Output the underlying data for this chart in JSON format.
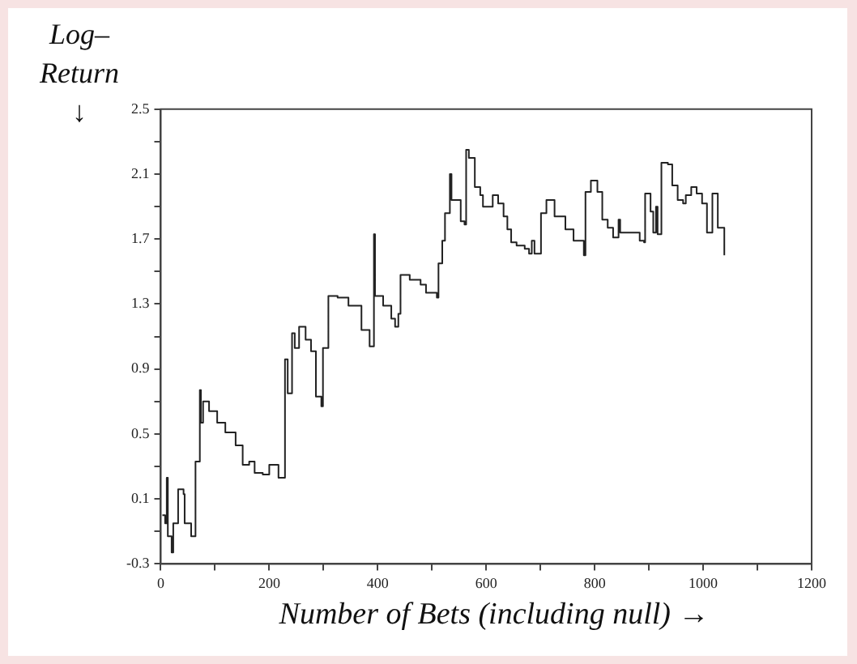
{
  "chart_data": {
    "type": "step",
    "xlabel": "Number of Bets (including null) →",
    "ylabel": "Log– Return ↓",
    "xlim": [
      0,
      1200
    ],
    "xticks": [
      0,
      {
        "value": 100,
        "label": null
      },
      200,
      {
        "value": 300,
        "label": null
      },
      400,
      {
        "value": 500,
        "label": null
      },
      600,
      {
        "value": 700,
        "label": null
      },
      800,
      {
        "value": 900,
        "label": null
      },
      1000,
      {
        "value": 1100,
        "label": null
      },
      1200
    ],
    "ylim": [
      -0.3,
      2.5
    ],
    "yticks": [
      -0.3,
      {
        "value": -0.1,
        "label": null
      },
      0.1,
      {
        "value": 0.3,
        "label": null
      },
      0.5,
      {
        "value": 0.7,
        "label": null
      },
      0.9,
      {
        "value": 1.1,
        "label": null
      },
      1.3,
      {
        "value": 1.5,
        "label": null
      },
      1.7,
      {
        "value": 1.9,
        "label": null
      },
      2.1,
      {
        "value": 2.3,
        "label": null
      },
      2.5
    ],
    "grid": false,
    "legend": false,
    "marker": "none",
    "line_style": "solid",
    "series": [
      {
        "color": "#222222",
        "x": [
          3,
          8,
          11,
          13,
          20,
          23,
          32,
          42,
          44,
          56,
          64,
          71,
          72,
          74,
          78,
          89,
          104,
          119,
          138,
          151,
          163,
          173,
          188,
          200,
          217,
          229,
          234,
          242,
          247,
          255,
          267,
          277,
          286,
          296,
          299,
          309,
          326,
          346,
          370,
          385,
          393,
          395,
          410,
          425,
          432,
          438,
          442,
          459,
          479,
          489,
          509,
          512,
          519,
          524,
          533,
          536,
          548,
          553,
          560,
          563,
          568,
          579,
          589,
          594,
          612,
          622,
          632,
          639,
          646,
          656,
          671,
          679,
          684,
          689,
          699,
          701,
          711,
          726,
          746,
          761,
          777,
          780,
          783,
          793,
          805,
          814,
          824,
          834,
          844,
          847,
          878,
          883,
          891,
          893,
          903,
          908,
          913,
          916,
          923,
          935,
          943,
          953,
          963,
          968,
          978,
          988,
          998,
          1007,
          1017,
          1027,
          1039
        ],
        "values": [
          0.0,
          -0.05,
          0.23,
          -0.13,
          -0.23,
          -0.05,
          0.16,
          0.13,
          -0.05,
          -0.13,
          0.33,
          0.33,
          0.77,
          0.57,
          0.7,
          0.64,
          0.57,
          0.51,
          0.43,
          0.31,
          0.33,
          0.26,
          0.25,
          0.31,
          0.23,
          0.96,
          0.75,
          1.12,
          1.03,
          1.16,
          1.08,
          1.01,
          0.73,
          0.67,
          1.03,
          1.35,
          1.34,
          1.29,
          1.14,
          1.04,
          1.73,
          1.35,
          1.29,
          1.21,
          1.16,
          1.24,
          1.48,
          1.45,
          1.42,
          1.37,
          1.34,
          1.55,
          1.69,
          1.86,
          2.1,
          1.94,
          1.94,
          1.81,
          1.79,
          2.25,
          2.2,
          2.02,
          1.97,
          1.9,
          1.97,
          1.92,
          1.84,
          1.76,
          1.68,
          1.66,
          1.64,
          1.61,
          1.69,
          1.61,
          1.61,
          1.86,
          1.94,
          1.84,
          1.76,
          1.69,
          1.69,
          1.6,
          1.99,
          2.06,
          1.99,
          1.82,
          1.77,
          1.71,
          1.82,
          1.74,
          1.74,
          1.69,
          1.68,
          1.98,
          1.87,
          1.74,
          1.9,
          1.73,
          2.17,
          2.16,
          2.03,
          1.94,
          1.92,
          1.97,
          2.02,
          1.98,
          1.92,
          1.74,
          1.98,
          1.77,
          1.6
        ]
      }
    ]
  }
}
